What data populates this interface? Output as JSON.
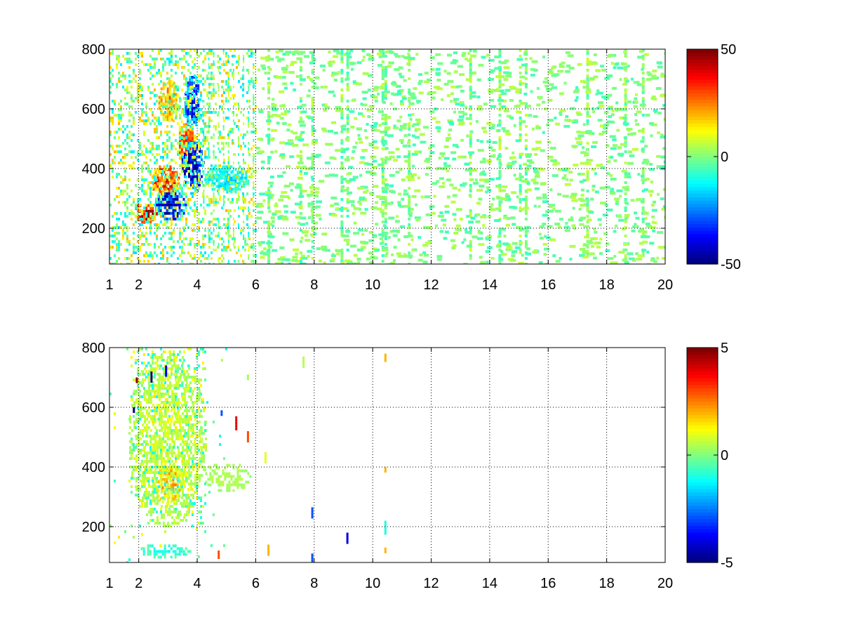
{
  "chart_data": [
    {
      "type": "heatmap",
      "title": "",
      "xlabel": "",
      "ylabel": "",
      "xlim": [
        1,
        20
      ],
      "ylim": [
        80,
        800
      ],
      "xticks": [
        "1",
        "2",
        "4",
        "6",
        "8",
        "10",
        "12",
        "14",
        "16",
        "18",
        "20"
      ],
      "xtick_values": [
        1,
        2,
        4,
        6,
        8,
        10,
        12,
        14,
        16,
        18,
        20
      ],
      "yticks": [
        "200",
        "400",
        "600",
        "800"
      ],
      "ytick_values": [
        200,
        400,
        600,
        800
      ],
      "grid": true,
      "colormap": "jet",
      "clim": [
        -50,
        50
      ],
      "colorbar_ticks": [
        "-50",
        "0",
        "50"
      ],
      "colorbar_tick_values": [
        -50,
        0,
        50
      ],
      "features": [
        {
          "x": [
            1.8,
            2.6
          ],
          "y": [
            220,
            290
          ],
          "value": 45
        },
        {
          "x": [
            2.4,
            3.4
          ],
          "y": [
            300,
            420
          ],
          "value": 35
        },
        {
          "x": [
            3.3,
            3.9
          ],
          "y": [
            400,
            580
          ],
          "value": 30
        },
        {
          "x": [
            2.5,
            3.6
          ],
          "y": [
            230,
            330
          ],
          "value": -42
        },
        {
          "x": [
            3.4,
            4.2
          ],
          "y": [
            320,
            500
          ],
          "value": -45
        },
        {
          "x": [
            3.5,
            4.1
          ],
          "y": [
            540,
            720
          ],
          "value": -35
        },
        {
          "x": [
            2.6,
            3.4
          ],
          "y": [
            560,
            700
          ],
          "value": 22
        },
        {
          "x": [
            4.2,
            5.8
          ],
          "y": [
            320,
            420
          ],
          "value": -15
        }
      ],
      "noise_band_x": [
        6,
        20
      ],
      "vertical_streaks_x": [
        6.4,
        7.5,
        7.9,
        8.9,
        9.1,
        10.3,
        10.4,
        11.2,
        13.3,
        14.3,
        15.0,
        15.2,
        17.3,
        18.6,
        19.2
      ]
    },
    {
      "type": "heatmap",
      "title": "",
      "xlabel": "",
      "ylabel": "",
      "xlim": [
        1,
        20
      ],
      "ylim": [
        80,
        800
      ],
      "xticks": [
        "1",
        "2",
        "4",
        "6",
        "8",
        "10",
        "12",
        "14",
        "16",
        "18",
        "20"
      ],
      "xtick_values": [
        1,
        2,
        4,
        6,
        8,
        10,
        12,
        14,
        16,
        18,
        20
      ],
      "yticks": [
        "200",
        "400",
        "600",
        "800"
      ],
      "ytick_values": [
        200,
        400,
        600,
        800
      ],
      "grid": true,
      "colormap": "jet",
      "clim": [
        -5,
        5
      ],
      "colorbar_ticks": [
        "-5",
        "0",
        "5"
      ],
      "colorbar_tick_values": [
        -5,
        0,
        5
      ],
      "features": [
        {
          "x": [
            1.6,
            4.3
          ],
          "y": [
            200,
            800
          ],
          "value": 0.8
        },
        {
          "x": [
            2.5,
            3.5
          ],
          "y": [
            280,
            420
          ],
          "value": 2.0
        },
        {
          "x": [
            4.2,
            5.8
          ],
          "y": [
            320,
            420
          ],
          "value": 0.5
        },
        {
          "x": [
            2.0,
            3.8
          ],
          "y": [
            100,
            150
          ],
          "value": -1.0
        }
      ],
      "sparse_points": [
        {
          "x": 1.9,
          "y": 700,
          "value": 5
        },
        {
          "x": 1.8,
          "y": 600,
          "value": -5
        },
        {
          "x": 2.4,
          "y": 720,
          "value": -5
        },
        {
          "x": 2.9,
          "y": 740,
          "value": -4
        },
        {
          "x": 4.8,
          "y": 590,
          "value": -3
        },
        {
          "x": 5.3,
          "y": 570,
          "value": 4
        },
        {
          "x": 5.7,
          "y": 520,
          "value": 3
        },
        {
          "x": 6.3,
          "y": 450,
          "value": 1
        },
        {
          "x": 7.9,
          "y": 265,
          "value": -3
        },
        {
          "x": 7.9,
          "y": 110,
          "value": -3
        },
        {
          "x": 9.1,
          "y": 180,
          "value": -4
        },
        {
          "x": 10.4,
          "y": 220,
          "value": -1
        },
        {
          "x": 10.4,
          "y": 400,
          "value": 2
        },
        {
          "x": 10.4,
          "y": 780,
          "value": 2
        },
        {
          "x": 10.4,
          "y": 130,
          "value": 2
        },
        {
          "x": 6.4,
          "y": 140,
          "value": 2
        },
        {
          "x": 7.6,
          "y": 770,
          "value": 0.5
        },
        {
          "x": 4.7,
          "y": 120,
          "value": 3
        },
        {
          "x": 5.7,
          "y": 710,
          "value": 0.3
        }
      ]
    }
  ]
}
